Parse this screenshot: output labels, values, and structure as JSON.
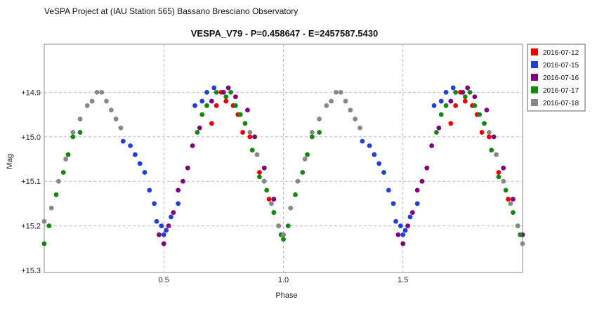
{
  "header": {
    "observatory": "VeSPA Project at (IAU Station 565) Bassano Bresciano Observatory"
  },
  "chart_data": {
    "type": "scatter",
    "title": "VESPA_V79  -  P=0.458647  -  E=2457587.5430",
    "xlabel": "Phase",
    "ylabel": "Mag",
    "xlim": [
      0.0,
      2.0
    ],
    "ylim": [
      15.3,
      14.8
    ],
    "y_inverted": true,
    "x_ticks": [
      {
        "value": 0.5,
        "label": "0.5"
      },
      {
        "value": 1.0,
        "label": "1.0"
      },
      {
        "value": 1.5,
        "label": "1.5"
      }
    ],
    "y_ticks": [
      {
        "value": 14.9,
        "label": "+14.9"
      },
      {
        "value": 15.0,
        "label": "+15.0"
      },
      {
        "value": 15.1,
        "label": "+15.1"
      },
      {
        "value": 15.2,
        "label": "+15.2"
      },
      {
        "value": 15.3,
        "label": "+15.3"
      }
    ],
    "grid": true,
    "legend_position": "right",
    "series": [
      {
        "name": "2016-07-12",
        "color": "#ee0000",
        "points": [
          [
            0.7,
            14.97
          ],
          [
            0.72,
            14.93
          ],
          [
            0.74,
            14.9
          ],
          [
            0.76,
            14.92
          ],
          [
            0.79,
            14.93
          ],
          [
            0.81,
            14.95
          ],
          [
            0.83,
            14.99
          ],
          [
            0.86,
            15.0
          ],
          [
            0.9,
            15.08
          ],
          [
            0.94,
            15.14
          ],
          [
            0.98,
            15.2
          ],
          [
            1.7,
            14.97
          ],
          [
            1.72,
            14.93
          ],
          [
            1.74,
            14.9
          ],
          [
            1.76,
            14.92
          ],
          [
            1.79,
            14.93
          ],
          [
            1.81,
            14.95
          ],
          [
            1.83,
            14.99
          ],
          [
            1.86,
            15.0
          ],
          [
            1.9,
            15.08
          ],
          [
            1.94,
            15.14
          ],
          [
            1.98,
            15.2
          ]
        ]
      },
      {
        "name": "2016-07-15",
        "color": "#1f3fd6",
        "points": [
          [
            0.33,
            15.01
          ],
          [
            0.36,
            15.02
          ],
          [
            0.38,
            15.04
          ],
          [
            0.4,
            15.06
          ],
          [
            0.42,
            15.08
          ],
          [
            0.44,
            15.12
          ],
          [
            0.46,
            15.15
          ],
          [
            0.47,
            15.19
          ],
          [
            0.49,
            15.2
          ],
          [
            0.5,
            15.22
          ],
          [
            0.51,
            15.21
          ],
          [
            0.53,
            15.18
          ],
          [
            0.56,
            15.15
          ],
          [
            0.63,
            14.93
          ],
          [
            0.66,
            14.92
          ],
          [
            0.68,
            14.9
          ],
          [
            0.71,
            14.89
          ],
          [
            1.33,
            15.01
          ],
          [
            1.36,
            15.02
          ],
          [
            1.38,
            15.04
          ],
          [
            1.4,
            15.06
          ],
          [
            1.42,
            15.08
          ],
          [
            1.44,
            15.12
          ],
          [
            1.46,
            15.15
          ],
          [
            1.47,
            15.19
          ],
          [
            1.49,
            15.2
          ],
          [
            1.5,
            15.22
          ],
          [
            1.51,
            15.21
          ],
          [
            1.53,
            15.18
          ],
          [
            1.56,
            15.15
          ],
          [
            1.63,
            14.93
          ],
          [
            1.66,
            14.92
          ],
          [
            1.68,
            14.9
          ],
          [
            1.71,
            14.89
          ]
        ]
      },
      {
        "name": "2016-07-16",
        "color": "#800080",
        "points": [
          [
            0.48,
            15.22
          ],
          [
            0.5,
            15.24
          ],
          [
            0.52,
            15.2
          ],
          [
            0.54,
            15.17
          ],
          [
            0.56,
            15.12
          ],
          [
            0.58,
            15.1
          ],
          [
            0.6,
            15.07
          ],
          [
            0.62,
            15.02
          ],
          [
            0.65,
            14.98
          ],
          [
            0.7,
            14.92
          ],
          [
            0.75,
            14.9
          ],
          [
            0.77,
            14.89
          ],
          [
            0.8,
            14.91
          ],
          [
            0.85,
            14.94
          ],
          [
            0.88,
            15.0
          ],
          [
            0.92,
            15.07
          ],
          [
            0.96,
            15.14
          ],
          [
            1.0,
            15.22
          ],
          [
            1.48,
            15.22
          ],
          [
            1.5,
            15.24
          ],
          [
            1.52,
            15.2
          ],
          [
            1.54,
            15.17
          ],
          [
            1.56,
            15.12
          ],
          [
            1.58,
            15.1
          ],
          [
            1.6,
            15.07
          ],
          [
            1.62,
            15.02
          ],
          [
            1.65,
            14.98
          ],
          [
            1.7,
            14.92
          ],
          [
            1.75,
            14.9
          ],
          [
            1.77,
            14.89
          ],
          [
            1.8,
            14.91
          ],
          [
            1.85,
            14.94
          ],
          [
            1.88,
            15.0
          ],
          [
            1.92,
            15.07
          ],
          [
            1.96,
            15.14
          ],
          [
            2.0,
            15.22
          ]
        ]
      },
      {
        "name": "2016-07-17",
        "color": "#118811",
        "points": [
          [
            0.0,
            15.24
          ],
          [
            0.02,
            15.2
          ],
          [
            0.05,
            15.13
          ],
          [
            0.08,
            15.08
          ],
          [
            0.1,
            15.04
          ],
          [
            0.12,
            15.0
          ],
          [
            0.15,
            14.99
          ],
          [
            0.64,
            14.99
          ],
          [
            0.66,
            14.95
          ],
          [
            0.68,
            14.93
          ],
          [
            0.72,
            14.9
          ],
          [
            0.76,
            14.91
          ],
          [
            0.78,
            14.9
          ],
          [
            0.8,
            14.93
          ],
          [
            0.82,
            14.95
          ],
          [
            0.84,
            14.97
          ],
          [
            0.87,
            15.03
          ],
          [
            0.9,
            15.09
          ],
          [
            0.93,
            15.12
          ],
          [
            0.96,
            15.17
          ],
          [
            0.99,
            15.22
          ],
          [
            1.0,
            15.23
          ],
          [
            1.02,
            15.2
          ],
          [
            1.05,
            15.13
          ],
          [
            1.08,
            15.08
          ],
          [
            1.1,
            15.04
          ],
          [
            1.12,
            15.0
          ],
          [
            1.15,
            14.99
          ],
          [
            1.64,
            14.99
          ],
          [
            1.66,
            14.95
          ],
          [
            1.68,
            14.93
          ],
          [
            1.72,
            14.9
          ],
          [
            1.76,
            14.91
          ],
          [
            1.78,
            14.9
          ],
          [
            1.8,
            14.93
          ],
          [
            1.82,
            14.95
          ],
          [
            1.84,
            14.97
          ],
          [
            1.87,
            15.03
          ],
          [
            1.9,
            15.09
          ],
          [
            1.93,
            15.12
          ],
          [
            1.96,
            15.17
          ],
          [
            1.99,
            15.22
          ]
        ]
      },
      {
        "name": "2016-07-18",
        "color": "#888888",
        "points": [
          [
            0.0,
            15.19
          ],
          [
            0.03,
            15.16
          ],
          [
            0.06,
            15.1
          ],
          [
            0.09,
            15.05
          ],
          [
            0.12,
            14.99
          ],
          [
            0.15,
            14.96
          ],
          [
            0.18,
            14.93
          ],
          [
            0.2,
            14.92
          ],
          [
            0.22,
            14.9
          ],
          [
            0.24,
            14.9
          ],
          [
            0.26,
            14.92
          ],
          [
            0.28,
            14.94
          ],
          [
            0.3,
            14.96
          ],
          [
            0.32,
            14.98
          ],
          [
            0.86,
            14.99
          ],
          [
            0.89,
            15.04
          ],
          [
            0.92,
            15.1
          ],
          [
            0.95,
            15.15
          ],
          [
            0.98,
            15.2
          ],
          [
            1.0,
            15.22
          ],
          [
            1.03,
            15.16
          ],
          [
            1.06,
            15.1
          ],
          [
            1.09,
            15.05
          ],
          [
            1.12,
            14.99
          ],
          [
            1.15,
            14.96
          ],
          [
            1.18,
            14.93
          ],
          [
            1.2,
            14.92
          ],
          [
            1.22,
            14.9
          ],
          [
            1.24,
            14.9
          ],
          [
            1.26,
            14.92
          ],
          [
            1.28,
            14.94
          ],
          [
            1.3,
            14.96
          ],
          [
            1.32,
            14.98
          ],
          [
            1.86,
            14.99
          ],
          [
            1.89,
            15.04
          ],
          [
            1.92,
            15.1
          ],
          [
            1.95,
            15.15
          ],
          [
            1.98,
            15.2
          ],
          [
            2.0,
            15.24
          ]
        ]
      }
    ]
  }
}
